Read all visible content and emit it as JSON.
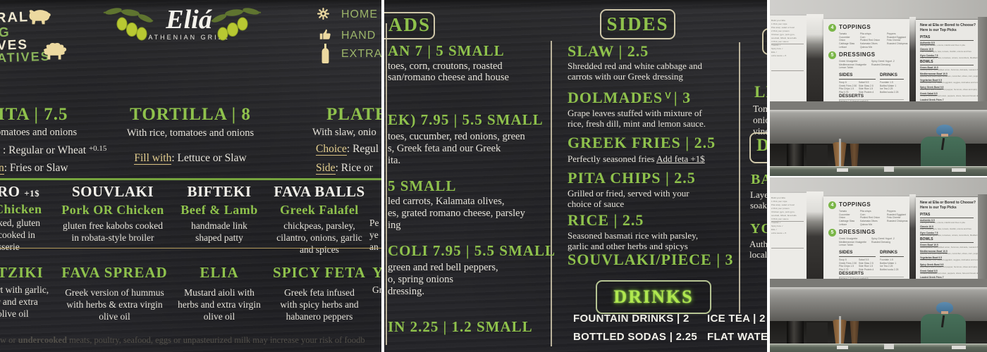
{
  "palette": {
    "chalk_bg": "#28282b",
    "menu_green": "#8fc24c",
    "glow_green": "#b0e84f",
    "chalk_white": "#ece9e0",
    "tan": "#e7d49a",
    "board_white": "#ecebe7",
    "step_green": "#7ab648",
    "worker_shirt": "#47705a",
    "worker_cap": "#4d7ea3"
  },
  "icons": [
    "pig-icon",
    "sheep-icon",
    "gear-icon",
    "thumbs-up-icon",
    "bottle-icon",
    "olive-branch-icon",
    "vegetarian-v-icon"
  ],
  "panels": {
    "menu_left": {
      "badges": {
        "line1": "RAL",
        "line2": "G",
        "line3": "VES",
        "line4": "ATIVES"
      },
      "logo": {
        "name": "Eliá",
        "subtitle": "ATHENIAN GRILL"
      },
      "nav": {
        "item1": "HOME",
        "item2": "HAND",
        "item3": "EXTRA"
      },
      "wraps": {
        "pita": {
          "title": "ITA | 7.5",
          "line": "omatoes and onions",
          "opt1": ":  Regular or Wheat",
          "opt1_sup": "+0.15",
          "opt2_label": "n",
          "opt2": ":  Fries or Slaw"
        },
        "tortilla": {
          "title": "TORTILLA | 8",
          "line": "With rice, tomatoes and onions",
          "opt1_label": "Fill with",
          "opt1": ":  Lettuce or Slaw"
        },
        "plate": {
          "title": "PLATE",
          "line": "With slaw, onio",
          "opt1_label": "Choice",
          "opt1": ":  Regul",
          "opt2_label": "Side",
          "opt2": ":  Rice or "
        }
      },
      "proteins": [
        {
          "title": "RO",
          "sup": "+1$",
          "sub": "Chicken",
          "desc": [
            "ked, gluten",
            "cooked in",
            "sserie"
          ]
        },
        {
          "title": "SOUVLAKI",
          "sub": "Pork OR Chicken",
          "desc": [
            "gluten free kabobs cooked",
            "in robata-style broiler"
          ]
        },
        {
          "title": "BIFTEKI",
          "sub": "Beef & Lamb",
          "desc": [
            "handmade link",
            "shaped patty"
          ]
        },
        {
          "title": "FAVA BALLS",
          "sub": "Greek Falafel",
          "desc": [
            "chickpeas, parsley,",
            "cilantro, onions, garlic",
            "and spices"
          ]
        },
        {
          "title": "",
          "sub": "",
          "desc": [
            "Pe",
            "ye",
            "an"
          ]
        }
      ],
      "sauces": [
        {
          "title": "TZIKI",
          "desc": [
            "rt with garlic,",
            "r and extra",
            "olive oil"
          ]
        },
        {
          "title": "FAVA SPREAD",
          "desc": [
            "Greek version of hummus",
            "with herbs & extra virgin",
            "olive oil"
          ]
        },
        {
          "title": "ELIA",
          "desc": [
            "Mustard aioli with",
            "herbs and extra virgin",
            "olive oil"
          ]
        },
        {
          "title": "SPICY FETA",
          "desc": [
            "Greek feta infused",
            "with spicy herbs and",
            "habanero peppers"
          ]
        },
        {
          "title": "Y",
          "desc": [
            "Gr"
          ]
        }
      ],
      "disclaimer": {
        "pre": "w or ",
        "bold": "undercooked",
        "post": " meats, poultry, seafood, eggs or unpasteurized milk may increase your risk of foodb"
      }
    },
    "menu_mid": {
      "salads_box_label": "ADS",
      "salads": [
        {
          "title": "AN  7 | 5 SMALL",
          "desc": [
            "toes, corn, croutons, roasted",
            "san/romano cheese and house"
          ]
        },
        {
          "title": "EK)  7.95 | 5.5 SMALL",
          "desc": [
            "toes, cucumber, red onions, green",
            "s, Greek feta and our Greek",
            "ita."
          ]
        },
        {
          "title": "5 SMALL",
          "desc": [
            "led carrots,  Kalamata olives,",
            "es, grated romano cheese, parsley",
            "ing"
          ]
        },
        {
          "title": "COLI  7.95 | 5.5 SMALL",
          "desc": [
            "green and red bell peppers,",
            "o, spring onions",
            "dressing."
          ]
        },
        {
          "title": "IN  2.25  | 1.2 SMALL",
          "desc": []
        }
      ],
      "sides_box_label": "SIDES",
      "sides": [
        {
          "title": "SLAW | 2.5",
          "desc": [
            "Shredded red and white cabbage and",
            "carrots with our Greek dressing"
          ]
        },
        {
          "title": "DOLMADES",
          "veg_mark": "V",
          "price": "| 3",
          "desc": [
            "Grape leaves stuffed with mixture of",
            "rice, fresh dill, mint and lemon sauce."
          ]
        },
        {
          "title": "GREEK FRIES | 2.5",
          "desc_pre": "Perfectly seasoned fries  ",
          "desc_link": "Add feta +1$"
        },
        {
          "title": "PITA CHIPS | 2.5",
          "desc": [
            "Grilled or fried, served with your",
            "choice of sauce"
          ]
        },
        {
          "title": "RICE | 2.5",
          "desc": [
            "Seasoned basmati rice with parsley,",
            "garlic and other herbs and spicys"
          ]
        },
        {
          "title": "SOUVLAKI/PIECE | 3",
          "desc": []
        }
      ],
      "drinks_box_label": "DRINKS",
      "drinks_left": [
        "FOUNTAIN DRINKS |  2",
        "BOTTLED SODAS |  2.25"
      ],
      "drinks_right": [
        "ICE TEA  |  2",
        "FLAT WATER"
      ],
      "right_column": {
        "item1_title": "LE",
        "item1_desc": [
          "Tom",
          "onio",
          "vineg"
        ],
        "d_box_label": "D",
        "item2_title": "BA",
        "item2_desc": [
          "Layer",
          "soake"
        ],
        "item3_title": "YO",
        "item3_desc": [
          "Authe",
          "local"
        ]
      }
    },
    "photo": {
      "left_board_lines": [
        "Build your Elia",
        "1  Pick your style",
        "Pita wrap, salad or bowl",
        "2  Pick your protein",
        "Chicken gyro, pork gyro,",
        "souvlaki, bifteki, fava balls",
        "3  Pick your sauce",
        "Tzatziki  ✓",
        "Spicy feta  ✓",
        "Elia  ✓",
        "extra sauce +.5"
      ],
      "center_board": {
        "step4": "4",
        "toppings_title": "TOPPINGS",
        "toppings_col1": [
          "Tomato",
          "Cucumber",
          "Onion",
          "Cabbage Slaw",
          "Lettuce"
        ],
        "toppings_col2": [
          "Pita crisps",
          "Corn",
          "Pickled Red Onion",
          "Kalamata Olives",
          "Quinoa Mix"
        ],
        "toppings_col3": [
          "Peppers",
          "Roasted Eggplant",
          "Feta Cheese",
          "Roasted Chickpeas"
        ],
        "step5": "5",
        "dressings_title": "DRESSINGS",
        "dressings_col1": [
          "Greek Vinaigrette",
          "Mediterranean Vinaigrette",
          "Lemon Tahini"
        ],
        "dressings_col2": [
          "Spicy Greek Yogurt .2",
          "Roasted Dressing"
        ],
        "sides_title": "SIDES",
        "sides_col1": [
          "Soup 6",
          "Greek Fries 2.50",
          "Pita Chips 1.5",
          "Pita 0.75"
        ],
        "sides_col2": [
          "Salad 5.5",
          "Side Slaw 2.5",
          "Side Rice 1.5",
          "Side Protein 4"
        ],
        "drinks_title": "DRINKS",
        "drinks_col": [
          "Fountain 1.5",
          "Bottled Water 1",
          "Ice Tea 2.25",
          "Bottled soda 2.25"
        ],
        "desserts_title": "DESSERTS",
        "desserts_line": "Baklava 1.5      Yogurt parfait 5",
        "note": "Authentic Greek yogurt topped with honey and walnuts"
      },
      "right_board": {
        "headline1": "New at Elia or Bored to Choose?",
        "headline2": "Here is our Top Picks",
        "pitas_title": "PITAS",
        "pitas": [
          {
            "name": "Authentic 8.5",
            "desc": "Pork gyro, tomato, onions, tzatziki and fries in pita"
          },
          {
            "name": "Classic 10.5",
            "desc": "Pita, Chicken gyro, feta, tomato, tzatziki, onions and fries"
          },
          {
            "name": "Gyro Combo 7.5",
            "desc": "Pita, Chicken gyro, feta, tomatoes, onions, cucumbers, Mediterranean vinaigrette"
          }
        ],
        "bowls_title": "BOWLS",
        "bowls": [
          {
            "name": "Green Bowl 10.5",
            "desc": "Mixed greens, rice, pickled onion, hummus, dolmade, roasted chickpeas and Greek vinaigrette"
          },
          {
            "name": "Mediterranean Bowl 10.5",
            "desc": "Quinoa, rice, pita crisps, tomatoes, cucumber, olives, corn, peppers, feta and vinaigrette"
          },
          {
            "name": "Vegetarian Bowl 9.5",
            "desc": "Fava spread, rice, roasted eggplant, veggies, dolmades and lemon tahini"
          },
          {
            "name": "Spicy Greek Bowl 9.5",
            "desc": "Rice, spicy feta, chicken, hot pepper, hummus, olives and spicy Greek yogurt dressing"
          },
          {
            "name": "Greek Salad 8.5",
            "desc": "Tomato, cucumber, red onion, peppers, olives, feta and Greek dressing"
          },
          {
            "name": "Loaded Greek Fries 7",
            "desc": "Greek fries, tzatziki, gyro meat, feta, onions and spicy yogurt dressing"
          }
        ]
      }
    }
  }
}
